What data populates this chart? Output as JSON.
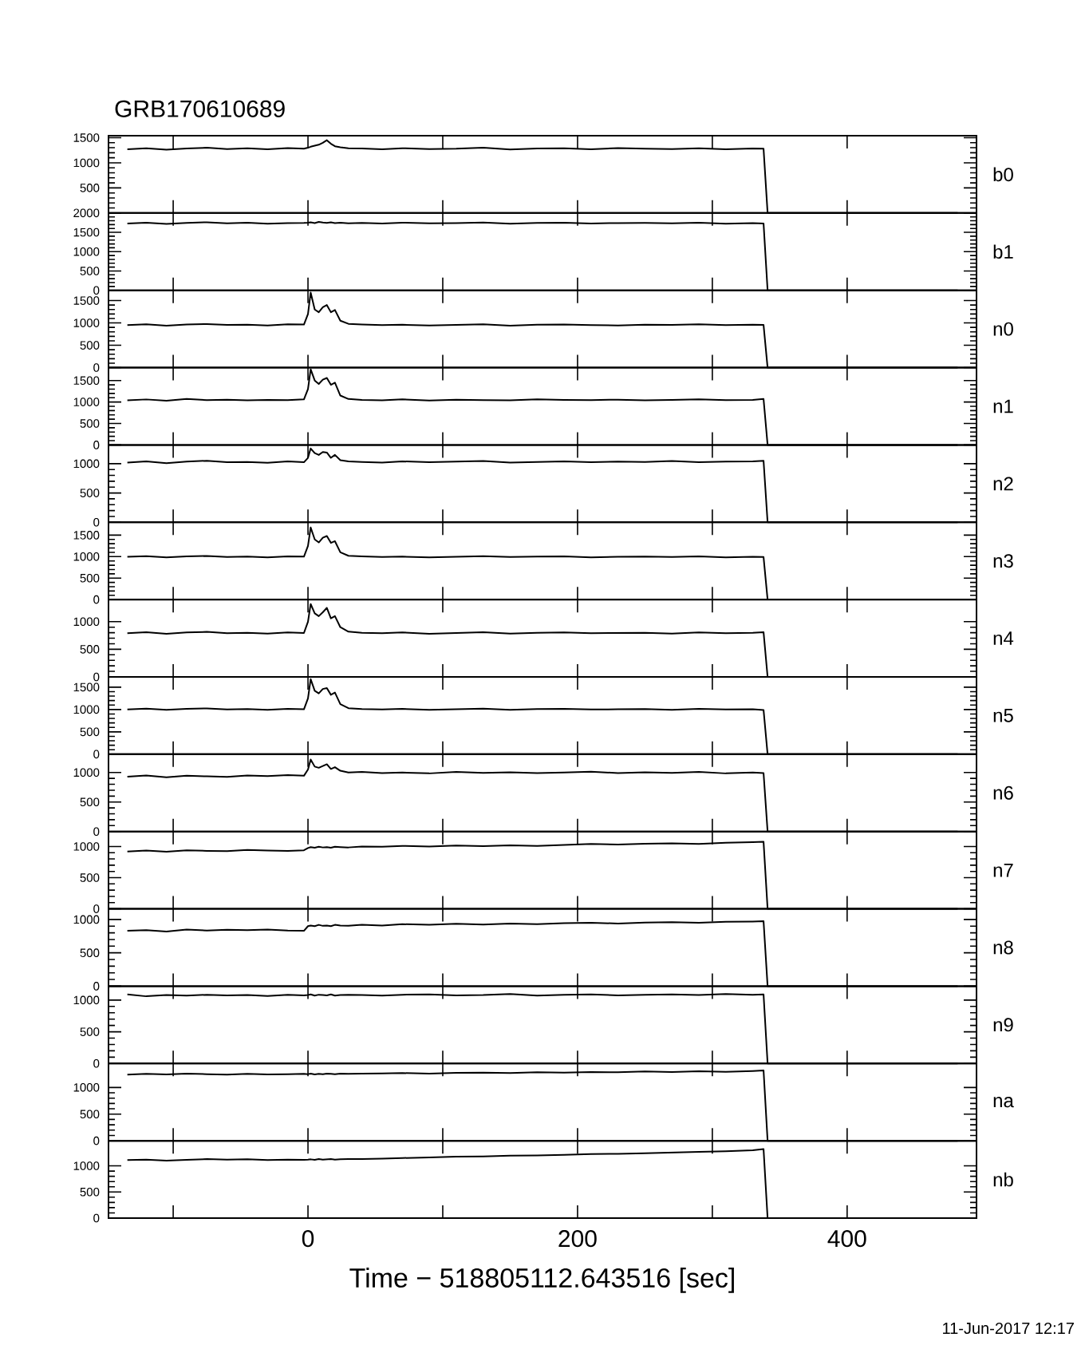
{
  "chart_data": [
    {
      "type": "line",
      "title": "GRB170610689",
      "x": [
        -134,
        -120,
        -105,
        -90,
        -75,
        -60,
        -45,
        -30,
        -15,
        -3,
        0,
        2,
        5,
        8,
        11,
        14,
        17,
        20,
        24,
        30,
        40,
        55,
        70,
        90,
        110,
        130,
        150,
        170,
        190,
        210,
        230,
        250,
        270,
        290,
        310,
        330,
        338,
        341,
        360,
        400,
        440,
        482
      ],
      "series": [
        {
          "name": "b0",
          "color": "#000000",
          "values": [
            1270,
            1290,
            1260,
            1285,
            1300,
            1275,
            1290,
            1270,
            1295,
            1280,
            1300,
            1320,
            1340,
            1360,
            1400,
            1450,
            1380,
            1330,
            1310,
            1290,
            1285,
            1270,
            1290,
            1275,
            1280,
            1300,
            1265,
            1285,
            1290,
            1270,
            1295,
            1280,
            1275,
            1290,
            1270,
            1285,
            1280,
            0,
            0,
            0,
            0,
            0
          ]
        }
      ],
      "xlim": [
        -148,
        496
      ],
      "ylim": [
        0,
        1540
      ],
      "xticks": [
        {
          "value": -100,
          "label": null
        },
        0,
        {
          "value": 100,
          "label": null
        },
        200,
        {
          "value": 300,
          "label": null
        },
        400
      ],
      "yticks": [
        {
          "value": 0,
          "label": null
        },
        500,
        1000,
        1500
      ],
      "tick_labels": "y",
      "marker": "none",
      "legend": "right"
    },
    {
      "type": "line",
      "x": [
        -134,
        -120,
        -105,
        -90,
        -75,
        -60,
        -45,
        -30,
        -15,
        -3,
        0,
        2,
        5,
        8,
        11,
        14,
        17,
        20,
        24,
        30,
        40,
        55,
        70,
        90,
        110,
        130,
        150,
        170,
        190,
        210,
        230,
        250,
        270,
        290,
        310,
        330,
        338,
        341,
        360,
        400,
        440,
        482
      ],
      "series": [
        {
          "name": "b1",
          "color": "#000000",
          "values": [
            1730,
            1750,
            1720,
            1745,
            1760,
            1735,
            1750,
            1725,
            1740,
            1745,
            1750,
            1760,
            1740,
            1770,
            1755,
            1745,
            1760,
            1740,
            1750,
            1735,
            1745,
            1730,
            1750,
            1735,
            1740,
            1755,
            1725,
            1745,
            1750,
            1730,
            1740,
            1745,
            1735,
            1750,
            1725,
            1740,
            1730,
            0,
            0,
            0,
            0,
            0
          ]
        }
      ],
      "xlim": [
        -148,
        496
      ],
      "ylim": [
        0,
        2000
      ],
      "xticks": [
        {
          "value": -100,
          "label": null
        },
        0,
        {
          "value": 100,
          "label": null
        },
        200,
        {
          "value": 300,
          "label": null
        },
        400
      ],
      "yticks": [
        0,
        500,
        1000,
        1500,
        2000
      ],
      "tick_labels": "y",
      "marker": "none",
      "legend": "right"
    },
    {
      "type": "line",
      "x": [
        -134,
        -120,
        -105,
        -90,
        -75,
        -60,
        -45,
        -30,
        -15,
        -3,
        0,
        2,
        5,
        8,
        11,
        14,
        17,
        20,
        24,
        30,
        40,
        55,
        70,
        90,
        110,
        130,
        150,
        170,
        190,
        210,
        230,
        250,
        270,
        290,
        310,
        330,
        338,
        341,
        360,
        400,
        440,
        482
      ],
      "series": [
        {
          "name": "n0",
          "color": "#000000",
          "values": [
            950,
            970,
            940,
            965,
            975,
            955,
            960,
            945,
            970,
            965,
            1200,
            1680,
            1300,
            1240,
            1350,
            1400,
            1240,
            1290,
            1050,
            980,
            965,
            950,
            960,
            945,
            955,
            970,
            940,
            960,
            965,
            950,
            945,
            960,
            955,
            970,
            950,
            960,
            955,
            0,
            0,
            0,
            0,
            0
          ]
        }
      ],
      "xlim": [
        -148,
        496
      ],
      "ylim": [
        0,
        1730
      ],
      "xticks": [
        {
          "value": -100,
          "label": null
        },
        0,
        {
          "value": 100,
          "label": null
        },
        200,
        {
          "value": 300,
          "label": null
        },
        400
      ],
      "yticks": [
        0,
        500,
        1000,
        1500
      ],
      "tick_labels": "y",
      "marker": "none",
      "legend": "right"
    },
    {
      "type": "line",
      "x": [
        -134,
        -120,
        -105,
        -90,
        -75,
        -60,
        -45,
        -30,
        -15,
        -3,
        0,
        2,
        5,
        8,
        11,
        14,
        17,
        20,
        24,
        30,
        40,
        55,
        70,
        90,
        110,
        130,
        150,
        170,
        190,
        210,
        230,
        250,
        270,
        290,
        310,
        330,
        338,
        341,
        360,
        400,
        440,
        482
      ],
      "series": [
        {
          "name": "n1",
          "color": "#000000",
          "values": [
            1040,
            1060,
            1030,
            1070,
            1045,
            1055,
            1040,
            1050,
            1045,
            1060,
            1300,
            1760,
            1500,
            1420,
            1520,
            1560,
            1400,
            1450,
            1150,
            1070,
            1050,
            1040,
            1060,
            1035,
            1055,
            1045,
            1040,
            1060,
            1050,
            1045,
            1055,
            1040,
            1050,
            1060,
            1045,
            1050,
            1070,
            0,
            0,
            0,
            0,
            0
          ]
        }
      ],
      "xlim": [
        -148,
        496
      ],
      "ylim": [
        0,
        1800
      ],
      "xticks": [
        {
          "value": -100,
          "label": null
        },
        0,
        {
          "value": 100,
          "label": null
        },
        200,
        {
          "value": 300,
          "label": null
        },
        400
      ],
      "yticks": [
        0,
        500,
        1000,
        1500
      ],
      "tick_labels": "y",
      "marker": "none",
      "legend": "right"
    },
    {
      "type": "line",
      "x": [
        -134,
        -120,
        -105,
        -90,
        -75,
        -60,
        -45,
        -30,
        -15,
        -3,
        0,
        2,
        5,
        8,
        11,
        14,
        17,
        20,
        24,
        30,
        40,
        55,
        70,
        90,
        110,
        130,
        150,
        170,
        190,
        210,
        230,
        250,
        270,
        290,
        310,
        330,
        338,
        341,
        360,
        400,
        440,
        482
      ],
      "series": [
        {
          "name": "n2",
          "color": "#000000",
          "values": [
            1020,
            1040,
            1010,
            1035,
            1050,
            1025,
            1030,
            1015,
            1040,
            1025,
            1100,
            1260,
            1180,
            1150,
            1200,
            1190,
            1100,
            1150,
            1060,
            1040,
            1030,
            1020,
            1040,
            1025,
            1035,
            1045,
            1020,
            1030,
            1040,
            1025,
            1035,
            1030,
            1045,
            1025,
            1035,
            1040,
            1050,
            0,
            0,
            0,
            0,
            0
          ]
        }
      ],
      "xlim": [
        -148,
        496
      ],
      "ylim": [
        0,
        1320
      ],
      "xticks": [
        {
          "value": -100,
          "label": null
        },
        0,
        {
          "value": 100,
          "label": null
        },
        200,
        {
          "value": 300,
          "label": null
        },
        400
      ],
      "yticks": [
        0,
        500,
        1000
      ],
      "tick_labels": "y",
      "marker": "none",
      "legend": "right"
    },
    {
      "type": "line",
      "x": [
        -134,
        -120,
        -105,
        -90,
        -75,
        -60,
        -45,
        -30,
        -15,
        -3,
        0,
        2,
        5,
        8,
        11,
        14,
        17,
        20,
        24,
        30,
        40,
        55,
        70,
        90,
        110,
        130,
        150,
        170,
        190,
        210,
        230,
        250,
        270,
        290,
        310,
        330,
        338,
        341,
        360,
        400,
        440,
        482
      ],
      "series": [
        {
          "name": "n3",
          "color": "#000000",
          "values": [
            995,
            1010,
            985,
            1005,
            1015,
            990,
            1000,
            985,
            1005,
            1000,
            1250,
            1680,
            1400,
            1330,
            1440,
            1480,
            1320,
            1360,
            1100,
            1020,
            1005,
            990,
            1000,
            985,
            995,
            1010,
            990,
            1000,
            1005,
            985,
            995,
            1000,
            990,
            1005,
            985,
            995,
            990,
            0,
            0,
            0,
            0,
            0
          ]
        }
      ],
      "xlim": [
        -148,
        496
      ],
      "ylim": [
        0,
        1800
      ],
      "xticks": [
        {
          "value": -100,
          "label": null
        },
        0,
        {
          "value": 100,
          "label": null
        },
        200,
        {
          "value": 300,
          "label": null
        },
        400
      ],
      "yticks": [
        0,
        500,
        1000,
        1500
      ],
      "tick_labels": "y",
      "marker": "none",
      "legend": "right"
    },
    {
      "type": "line",
      "x": [
        -134,
        -120,
        -105,
        -90,
        -75,
        -60,
        -45,
        -30,
        -15,
        -3,
        0,
        2,
        5,
        8,
        11,
        14,
        17,
        20,
        24,
        30,
        40,
        55,
        70,
        90,
        110,
        130,
        150,
        170,
        190,
        210,
        230,
        250,
        270,
        290,
        310,
        330,
        338,
        341,
        360,
        400,
        440,
        482
      ],
      "series": [
        {
          "name": "n4",
          "color": "#000000",
          "values": [
            790,
            810,
            780,
            805,
            815,
            790,
            800,
            785,
            805,
            795,
            1000,
            1320,
            1150,
            1100,
            1170,
            1250,
            1060,
            1100,
            900,
            820,
            800,
            790,
            805,
            780,
            795,
            810,
            785,
            800,
            805,
            790,
            795,
            800,
            785,
            805,
            790,
            800,
            810,
            0,
            0,
            0,
            0,
            0
          ]
        }
      ],
      "xlim": [
        -148,
        496
      ],
      "ylim": [
        0,
        1400
      ],
      "xticks": [
        {
          "value": -100,
          "label": null
        },
        0,
        {
          "value": 100,
          "label": null
        },
        200,
        {
          "value": 300,
          "label": null
        },
        400
      ],
      "yticks": [
        0,
        500,
        1000
      ],
      "tick_labels": "y",
      "marker": "none",
      "legend": "right"
    },
    {
      "type": "line",
      "x": [
        -134,
        -120,
        -105,
        -90,
        -75,
        -60,
        -45,
        -30,
        -15,
        -3,
        0,
        2,
        5,
        8,
        11,
        14,
        17,
        20,
        24,
        30,
        40,
        55,
        70,
        90,
        110,
        130,
        150,
        170,
        190,
        210,
        230,
        250,
        270,
        290,
        310,
        330,
        338,
        341,
        360,
        400,
        440,
        482
      ],
      "series": [
        {
          "name": "n5",
          "color": "#000000",
          "values": [
            1000,
            1020,
            995,
            1015,
            1025,
            1000,
            1010,
            995,
            1015,
            1005,
            1250,
            1680,
            1420,
            1360,
            1460,
            1480,
            1330,
            1380,
            1120,
            1030,
            1010,
            1000,
            1015,
            995,
            1005,
            1020,
            995,
            1010,
            1015,
            1000,
            1005,
            1010,
            995,
            1015,
            1000,
            1005,
            990,
            0,
            0,
            0,
            0,
            0
          ]
        }
      ],
      "xlim": [
        -148,
        496
      ],
      "ylim": [
        0,
        1730
      ],
      "xticks": [
        {
          "value": -100,
          "label": null
        },
        0,
        {
          "value": 100,
          "label": null
        },
        200,
        {
          "value": 300,
          "label": null
        },
        400
      ],
      "yticks": [
        0,
        500,
        1000,
        1500
      ],
      "tick_labels": "y",
      "marker": "none",
      "legend": "right"
    },
    {
      "type": "line",
      "x": [
        -134,
        -120,
        -105,
        -90,
        -75,
        -60,
        -45,
        -30,
        -15,
        -3,
        0,
        2,
        5,
        8,
        11,
        14,
        17,
        20,
        24,
        30,
        40,
        55,
        70,
        90,
        110,
        130,
        150,
        170,
        190,
        210,
        230,
        250,
        270,
        290,
        310,
        330,
        338,
        341,
        360,
        400,
        440,
        482
      ],
      "series": [
        {
          "name": "n6",
          "color": "#000000",
          "values": [
            930,
            950,
            920,
            945,
            935,
            925,
            950,
            940,
            955,
            945,
            1050,
            1220,
            1100,
            1080,
            1110,
            1140,
            1060,
            1090,
            1030,
            1000,
            1010,
            990,
            1000,
            985,
            1010,
            995,
            1005,
            990,
            1000,
            1015,
            990,
            1005,
            995,
            1010,
            985,
            1000,
            990,
            0,
            0,
            0,
            0,
            0
          ]
        }
      ],
      "xlim": [
        -148,
        496
      ],
      "ylim": [
        0,
        1310
      ],
      "xticks": [
        {
          "value": -100,
          "label": null
        },
        0,
        {
          "value": 100,
          "label": null
        },
        200,
        {
          "value": 300,
          "label": null
        },
        400
      ],
      "yticks": [
        0,
        500,
        1000
      ],
      "tick_labels": "y",
      "marker": "none",
      "legend": "right"
    },
    {
      "type": "line",
      "x": [
        -134,
        -120,
        -105,
        -90,
        -75,
        -60,
        -45,
        -30,
        -15,
        -3,
        0,
        2,
        5,
        8,
        11,
        14,
        17,
        20,
        24,
        30,
        40,
        55,
        70,
        90,
        110,
        130,
        150,
        170,
        190,
        210,
        230,
        250,
        270,
        290,
        310,
        330,
        338,
        341,
        360,
        400,
        440,
        482
      ],
      "series": [
        {
          "name": "n7",
          "color": "#000000",
          "values": [
            920,
            935,
            915,
            940,
            930,
            925,
            945,
            935,
            930,
            940,
            975,
            990,
            980,
            995,
            985,
            990,
            980,
            995,
            990,
            985,
            1000,
            995,
            1010,
            1000,
            1015,
            1005,
            1020,
            1010,
            1025,
            1040,
            1030,
            1045,
            1050,
            1040,
            1060,
            1070,
            1075,
            0,
            0,
            0,
            0,
            0
          ]
        }
      ],
      "xlim": [
        -148,
        496
      ],
      "ylim": [
        0,
        1240
      ],
      "xticks": [
        {
          "value": -100,
          "label": null
        },
        0,
        {
          "value": 100,
          "label": null
        },
        200,
        {
          "value": 300,
          "label": null
        },
        400
      ],
      "yticks": [
        0,
        500,
        1000
      ],
      "tick_labels": "y",
      "marker": "none",
      "legend": "right"
    },
    {
      "type": "line",
      "x": [
        -134,
        -120,
        -105,
        -90,
        -75,
        -60,
        -45,
        -30,
        -15,
        -3,
        0,
        2,
        5,
        8,
        11,
        14,
        17,
        20,
        24,
        30,
        40,
        55,
        70,
        90,
        110,
        130,
        150,
        170,
        190,
        210,
        230,
        250,
        270,
        290,
        310,
        330,
        338,
        341,
        360,
        400,
        440,
        482
      ],
      "series": [
        {
          "name": "n8",
          "color": "#000000",
          "values": [
            830,
            840,
            820,
            850,
            835,
            845,
            840,
            850,
            835,
            830,
            900,
            910,
            900,
            920,
            905,
            910,
            900,
            920,
            910,
            905,
            920,
            910,
            930,
            920,
            935,
            925,
            940,
            930,
            945,
            950,
            940,
            955,
            960,
            950,
            965,
            970,
            975,
            0,
            0,
            0,
            0,
            0
          ]
        }
      ],
      "xlim": [
        -148,
        496
      ],
      "ylim": [
        0,
        1160
      ],
      "xticks": [
        {
          "value": -100,
          "label": null
        },
        0,
        {
          "value": 100,
          "label": null
        },
        200,
        {
          "value": 300,
          "label": null
        },
        400
      ],
      "yticks": [
        0,
        500,
        1000
      ],
      "tick_labels": "y",
      "marker": "none",
      "legend": "right"
    },
    {
      "type": "line",
      "x": [
        -134,
        -120,
        -105,
        -90,
        -75,
        -60,
        -45,
        -30,
        -15,
        -3,
        0,
        2,
        5,
        8,
        11,
        14,
        17,
        20,
        24,
        30,
        40,
        55,
        70,
        90,
        110,
        130,
        150,
        170,
        190,
        210,
        230,
        250,
        270,
        290,
        310,
        330,
        338,
        341,
        360,
        400,
        440,
        482
      ],
      "series": [
        {
          "name": "n9",
          "color": "#000000",
          "values": [
            1090,
            1060,
            1080,
            1070,
            1085,
            1075,
            1080,
            1065,
            1085,
            1075,
            1080,
            1090,
            1070,
            1085,
            1080,
            1075,
            1090,
            1070,
            1080,
            1085,
            1080,
            1070,
            1085,
            1090,
            1075,
            1080,
            1095,
            1070,
            1085,
            1090,
            1075,
            1085,
            1090,
            1080,
            1095,
            1085,
            1090,
            0,
            0,
            0,
            0,
            0
          ]
        }
      ],
      "xlim": [
        -148,
        496
      ],
      "ylim": [
        0,
        1220
      ],
      "xticks": [
        {
          "value": -100,
          "label": null
        },
        0,
        {
          "value": 100,
          "label": null
        },
        200,
        {
          "value": 300,
          "label": null
        },
        400
      ],
      "yticks": [
        0,
        500,
        1000
      ],
      "tick_labels": "y",
      "marker": "none",
      "legend": "right"
    },
    {
      "type": "line",
      "x": [
        -134,
        -120,
        -105,
        -90,
        -75,
        -60,
        -45,
        -30,
        -15,
        -3,
        0,
        2,
        5,
        8,
        11,
        14,
        17,
        20,
        24,
        30,
        40,
        55,
        70,
        90,
        110,
        130,
        150,
        170,
        190,
        210,
        230,
        250,
        270,
        290,
        310,
        330,
        338,
        341,
        360,
        400,
        440,
        482
      ],
      "series": [
        {
          "name": "na",
          "color": "#000000",
          "values": [
            1240,
            1255,
            1245,
            1260,
            1250,
            1240,
            1255,
            1245,
            1250,
            1255,
            1250,
            1260,
            1245,
            1255,
            1250,
            1260,
            1255,
            1250,
            1260,
            1255,
            1260,
            1265,
            1270,
            1260,
            1275,
            1280,
            1270,
            1285,
            1280,
            1290,
            1285,
            1300,
            1290,
            1305,
            1295,
            1310,
            1320,
            0,
            0,
            0,
            0,
            0
          ]
        }
      ],
      "xlim": [
        -148,
        496
      ],
      "ylim": [
        0,
        1450
      ],
      "xticks": [
        {
          "value": -100,
          "label": null
        },
        0,
        {
          "value": 100,
          "label": null
        },
        200,
        {
          "value": 300,
          "label": null
        },
        400
      ],
      "yticks": [
        0,
        500,
        1000
      ],
      "tick_labels": "y",
      "marker": "none",
      "legend": "right"
    },
    {
      "type": "line",
      "xlabel": "Time − 518805112.643516 [sec]",
      "annotations": [
        "11-Jun-2017 12:17"
      ],
      "x": [
        -134,
        -120,
        -105,
        -90,
        -75,
        -60,
        -45,
        -30,
        -15,
        -3,
        0,
        2,
        5,
        8,
        11,
        14,
        17,
        20,
        24,
        30,
        40,
        55,
        70,
        90,
        110,
        130,
        150,
        170,
        190,
        210,
        230,
        250,
        270,
        290,
        310,
        330,
        338,
        341,
        360,
        400,
        440,
        482
      ],
      "series": [
        {
          "name": "nb",
          "color": "#000000",
          "values": [
            1110,
            1120,
            1100,
            1115,
            1130,
            1120,
            1125,
            1110,
            1120,
            1115,
            1120,
            1125,
            1115,
            1130,
            1120,
            1125,
            1130,
            1120,
            1125,
            1130,
            1130,
            1140,
            1150,
            1160,
            1175,
            1180,
            1195,
            1200,
            1210,
            1225,
            1230,
            1240,
            1255,
            1270,
            1280,
            1300,
            1320,
            0,
            0,
            0,
            0,
            0
          ]
        }
      ],
      "xlim": [
        -148,
        496
      ],
      "ylim": [
        0,
        1480
      ],
      "xticks": [
        {
          "value": -100,
          "label": null
        },
        0,
        {
          "value": 100,
          "label": null
        },
        200,
        {
          "value": 300,
          "label": null
        },
        400
      ],
      "yticks": [
        0,
        500,
        1000
      ],
      "marker": "none",
      "legend": "right"
    }
  ]
}
